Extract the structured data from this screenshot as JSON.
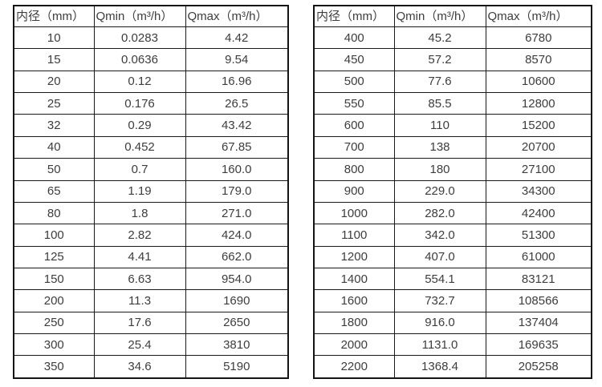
{
  "left_table": {
    "headers": [
      "内径（mm）",
      "Qmin（m³/h）",
      "Qmax（m³/h）"
    ],
    "rows": [
      [
        "10",
        "0.0283",
        "4.42"
      ],
      [
        "15",
        "0.0636",
        "9.54"
      ],
      [
        "20",
        "0.12",
        "16.96"
      ],
      [
        "25",
        "0.176",
        "26.5"
      ],
      [
        "32",
        "0.29",
        "43.42"
      ],
      [
        "40",
        "0.452",
        "67.85"
      ],
      [
        "50",
        "0.7",
        "160.0"
      ],
      [
        "65",
        "1.19",
        "179.0"
      ],
      [
        "80",
        "1.8",
        "271.0"
      ],
      [
        "100",
        "2.82",
        "424.0"
      ],
      [
        "125",
        "4.41",
        "662.0"
      ],
      [
        "150",
        "6.63",
        "954.0"
      ],
      [
        "200",
        "11.3",
        "1690"
      ],
      [
        "250",
        "17.6",
        "2650"
      ],
      [
        "300",
        "25.4",
        "3810"
      ],
      [
        "350",
        "34.6",
        "5190"
      ]
    ]
  },
  "right_table": {
    "headers": [
      "内径（mm）",
      "Qmin（m³/h）",
      "Qmax（m³/h）"
    ],
    "rows": [
      [
        "400",
        "45.2",
        "6780"
      ],
      [
        "450",
        "57.2",
        "8570"
      ],
      [
        "500",
        "77.6",
        "10600"
      ],
      [
        "550",
        "85.5",
        "12800"
      ],
      [
        "600",
        "110",
        "15200"
      ],
      [
        "700",
        "138",
        "20700"
      ],
      [
        "800",
        "180",
        "27100"
      ],
      [
        "900",
        "229.0",
        "34300"
      ],
      [
        "1000",
        "282.0",
        "42400"
      ],
      [
        "1100",
        "342.0",
        "51300"
      ],
      [
        "1200",
        "407.0",
        "61000"
      ],
      [
        "1400",
        "554.1",
        "83121"
      ],
      [
        "1600",
        "732.7",
        "108566"
      ],
      [
        "1800",
        "916.0",
        "137404"
      ],
      [
        "2000",
        "1131.0",
        "169635"
      ],
      [
        "2200",
        "1368.4",
        "205258"
      ]
    ]
  },
  "colors": {
    "background": "#ffffff",
    "border": "#1a1a1a",
    "text": "#3d3d3d"
  }
}
